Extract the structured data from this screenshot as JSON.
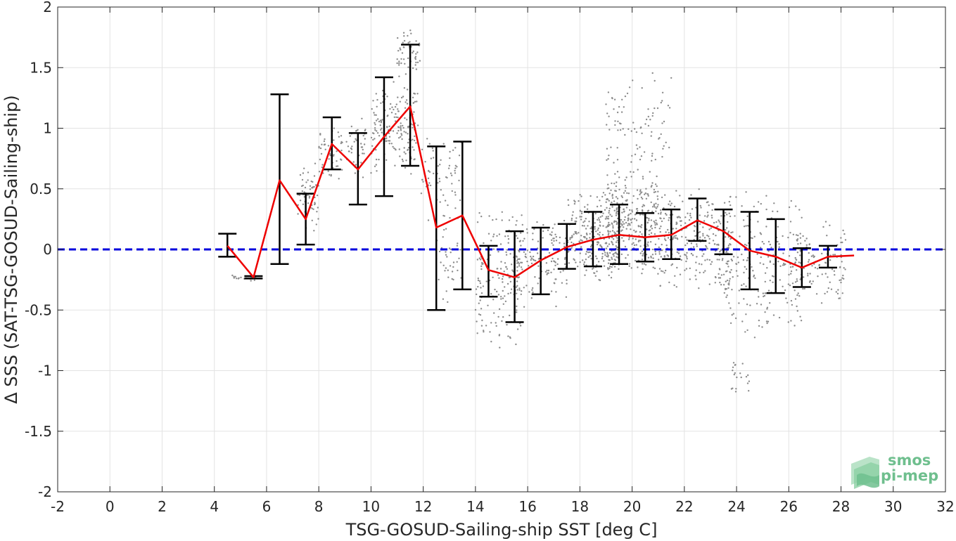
{
  "chart_data": {
    "type": "scatter",
    "xlabel": "TSG-GOSUD-Sailing-ship SST [deg C]",
    "ylabel": "Δ SSS (SAT-TSG-GOSUD-Sailing-ship)",
    "xlim": [
      -2,
      32
    ],
    "ylim": [
      -2,
      2
    ],
    "xticks": [
      -2,
      0,
      2,
      4,
      6,
      8,
      10,
      12,
      14,
      16,
      18,
      20,
      22,
      24,
      26,
      28,
      30,
      32
    ],
    "yticks": [
      2,
      1.5,
      1,
      0.5,
      0,
      -0.5,
      -1,
      -1.5,
      -2
    ],
    "x_tick_labels": [
      "-2",
      "0",
      "2",
      "4",
      "6",
      "8",
      "10",
      "12",
      "14",
      "16",
      "18",
      "20",
      "22",
      "24",
      "26",
      "28",
      "30",
      "32"
    ],
    "y_tick_labels": [
      "2",
      "1.5",
      "1",
      "0.5",
      "0",
      "-0.5",
      "-1",
      "-1.5",
      "-2"
    ],
    "grid": true,
    "zero_line": {
      "y": 0,
      "color": "#0000dd",
      "style": "dashed"
    },
    "series": [
      {
        "type": "line",
        "color": "#ee0000",
        "x": [
          4.5,
          5.5,
          6.5,
          7.5,
          8.5,
          9.5,
          10.5,
          11.5,
          12.5,
          13.5,
          14.5,
          15.5,
          16.5,
          17.5,
          18.5,
          19.5,
          20.5,
          21.5,
          22.5,
          23.5,
          24.5,
          25.5,
          26.5,
          27.5,
          28.5
        ],
        "y": [
          0.03,
          -0.23,
          0.57,
          0.25,
          0.87,
          0.66,
          0.93,
          1.18,
          0.18,
          0.28,
          -0.17,
          -0.23,
          -0.09,
          0.02,
          0.08,
          0.12,
          0.1,
          0.12,
          0.24,
          0.15,
          -0.01,
          -0.06,
          -0.15,
          -0.06,
          -0.05
        ]
      },
      {
        "type": "errorbar",
        "color": "#000000",
        "x": [
          4.5,
          5.5,
          6.5,
          7.5,
          8.5,
          9.5,
          10.5,
          11.5,
          12.5,
          13.5,
          14.5,
          15.5,
          16.5,
          17.5,
          18.5,
          19.5,
          20.5,
          21.5,
          22.5,
          23.5,
          24.5,
          25.5,
          26.5,
          27.5
        ],
        "low": [
          -0.06,
          -0.24,
          -0.12,
          0.04,
          0.66,
          0.37,
          0.44,
          0.69,
          -0.5,
          -0.33,
          -0.39,
          -0.6,
          -0.37,
          -0.16,
          -0.14,
          -0.12,
          -0.1,
          -0.08,
          0.07,
          -0.04,
          -0.33,
          -0.36,
          -0.31,
          -0.15
        ],
        "high": [
          0.13,
          -0.22,
          1.28,
          0.46,
          1.09,
          0.96,
          1.42,
          1.69,
          0.85,
          0.89,
          0.03,
          0.15,
          0.18,
          0.21,
          0.31,
          0.37,
          0.3,
          0.33,
          0.42,
          0.33,
          0.31,
          0.25,
          0.01,
          0.03
        ]
      },
      {
        "type": "scatter-cloud",
        "color": "#8c8c8c",
        "clusters": [
          {
            "x": [
              4.5,
              5.6
            ],
            "y": [
              -0.27,
              -0.2
            ],
            "n": 20
          },
          {
            "x": [
              7.2,
              8.0
            ],
            "y": [
              0.1,
              0.78
            ],
            "n": 60
          },
          {
            "x": [
              8.0,
              9.8
            ],
            "y": [
              0.55,
              1.1
            ],
            "n": 90
          },
          {
            "x": [
              10.0,
              11.8
            ],
            "y": [
              0.6,
              1.4
            ],
            "n": 180
          },
          {
            "x": [
              11.0,
              11.9
            ],
            "y": [
              1.4,
              1.85
            ],
            "n": 50
          },
          {
            "x": [
              11.9,
              13.5
            ],
            "y": [
              0.2,
              1.0
            ],
            "n": 70
          },
          {
            "x": [
              12.5,
              13.5
            ],
            "y": [
              -0.55,
              0.3
            ],
            "n": 40
          },
          {
            "x": [
              14.0,
              15.8
            ],
            "y": [
              -0.85,
              0.4
            ],
            "n": 170
          },
          {
            "x": [
              15.5,
              17.5
            ],
            "y": [
              -0.5,
              0.3
            ],
            "n": 130
          },
          {
            "x": [
              17.5,
              19.5
            ],
            "y": [
              -0.3,
              0.5
            ],
            "n": 250
          },
          {
            "x": [
              19.0,
              21.0
            ],
            "y": [
              -0.25,
              0.7
            ],
            "n": 320
          },
          {
            "x": [
              19.0,
              21.5
            ],
            "y": [
              0.5,
              1.55
            ],
            "n": 90
          },
          {
            "x": [
              21.0,
              23.8
            ],
            "y": [
              -0.4,
              0.55
            ],
            "n": 280
          },
          {
            "x": [
              23.5,
              26.5
            ],
            "y": [
              -0.8,
              0.5
            ],
            "n": 230
          },
          {
            "x": [
              23.8,
              24.5
            ],
            "y": [
              -1.2,
              -0.9
            ],
            "n": 20
          },
          {
            "x": [
              26.0,
              28.2
            ],
            "y": [
              -0.45,
              0.25
            ],
            "n": 110
          }
        ]
      }
    ]
  },
  "logo": {
    "line1": "smos",
    "line2": "pi-mep",
    "color": "#6fbf8e"
  }
}
